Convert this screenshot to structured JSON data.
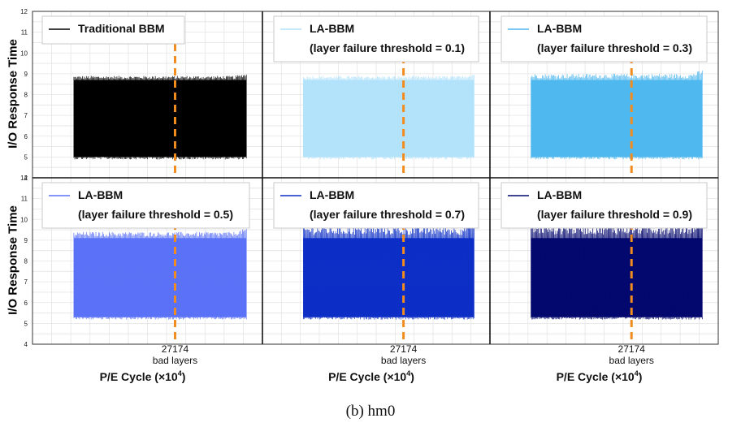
{
  "caption": "(b)  hm0",
  "ylabel": "I/O Response Time",
  "xlabel_prefix": "P/E Cycle (×10",
  "xlabel_exp": "4",
  "xlabel_suffix": ")",
  "marker_value": "27174",
  "marker_label": "bad layers",
  "chart_data": [
    {
      "type": "line",
      "legend": [
        "Traditional BBM"
      ],
      "color": "#000000",
      "y_range": [
        4,
        12
      ],
      "y_ticks": [
        4,
        5,
        6,
        7,
        8,
        9,
        10,
        11,
        12
      ],
      "band_low": 5.0,
      "band_high": 8.7,
      "series_values": {
        "low": 5.0,
        "high": 8.9
      },
      "marker_x": 27174
    },
    {
      "type": "line",
      "legend": [
        "LA-BBM",
        "(layer failure threshold = 0.1)"
      ],
      "color": "#b3e3fb",
      "y_range": [
        4,
        12
      ],
      "band_low": 5.0,
      "band_high": 8.7,
      "series_values": {
        "low": 5.0,
        "high": 8.9
      },
      "marker_x": 27174
    },
    {
      "type": "line",
      "legend": [
        "LA-BBM",
        "(layer failure threshold = 0.3)"
      ],
      "color": "#4fb8ef",
      "y_range": [
        4,
        12
      ],
      "band_low": 5.0,
      "band_high": 8.7,
      "series_values": {
        "low": 5.0,
        "high": 9.0
      },
      "marker_x": 27174
    },
    {
      "type": "line",
      "legend": [
        "LA-BBM",
        "(layer failure threshold = 0.5)"
      ],
      "color": "#5b72f7",
      "y_range": [
        4,
        12
      ],
      "y_ticks": [
        4,
        5,
        6,
        7,
        8,
        9,
        10,
        11,
        12
      ],
      "band_low": 5.3,
      "band_high": 9.1,
      "series_values": {
        "low": 5.3,
        "high": 9.4
      },
      "marker_x": 27174
    },
    {
      "type": "line",
      "legend": [
        "LA-BBM",
        "(layer failure threshold = 0.7)"
      ],
      "color": "#0d2fc6",
      "y_range": [
        4,
        12
      ],
      "band_low": 5.3,
      "band_high": 9.1,
      "series_values": {
        "low": 5.3,
        "high": 9.7
      },
      "marker_x": 27174
    },
    {
      "type": "line",
      "legend": [
        "LA-BBM",
        "(layer failure threshold = 0.9)"
      ],
      "color": "#03086e",
      "y_range": [
        4,
        12
      ],
      "band_low": 5.3,
      "band_high": 9.1,
      "series_values": {
        "low": 5.3,
        "high": 9.8
      },
      "marker_x": 27174
    }
  ]
}
